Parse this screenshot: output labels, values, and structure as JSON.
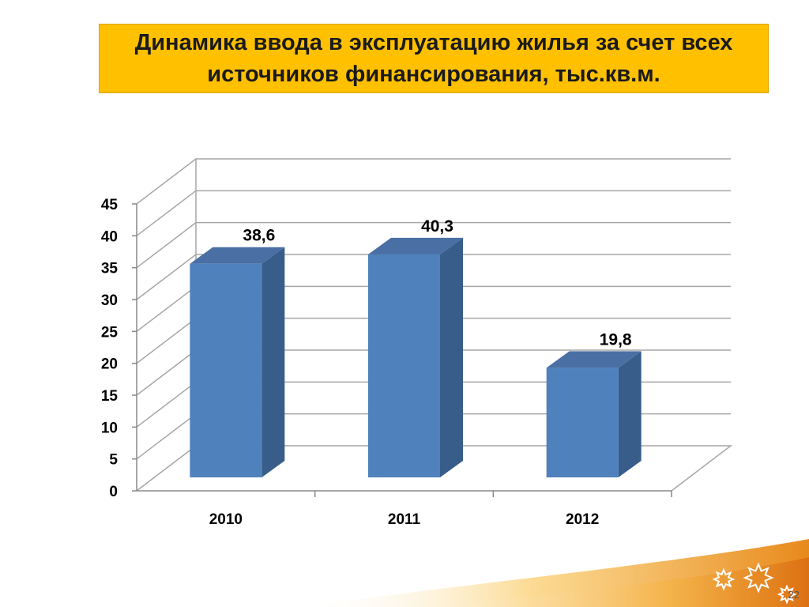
{
  "slide": {
    "title": "Динамика ввода в эксплуатацию жилья за счет всех источников финансирования, тыс.кв.м.",
    "page_number": "22"
  },
  "colors": {
    "title_bg": "#ffc000",
    "bar_front": "#4f81bd",
    "bar_side": "#385d8a",
    "bar_top": "#4a6fa5",
    "grid": "#a6a6a6",
    "swoosh": "#f0a030"
  },
  "decor": {
    "icons": [
      "star-icon",
      "star-icon",
      "star-icon"
    ]
  },
  "chart_data": {
    "type": "bar",
    "categories": [
      "2010",
      "2011",
      "2012"
    ],
    "values": [
      38.6,
      40.3,
      19.8
    ],
    "value_labels": [
      "38,6",
      "40,3",
      "19,8"
    ],
    "y_ticks": [
      "0",
      "5",
      "10",
      "15",
      "20",
      "25",
      "30",
      "35",
      "40",
      "45"
    ],
    "ylim": [
      0,
      45
    ],
    "grid": true,
    "legend": "none",
    "three_d": true
  }
}
